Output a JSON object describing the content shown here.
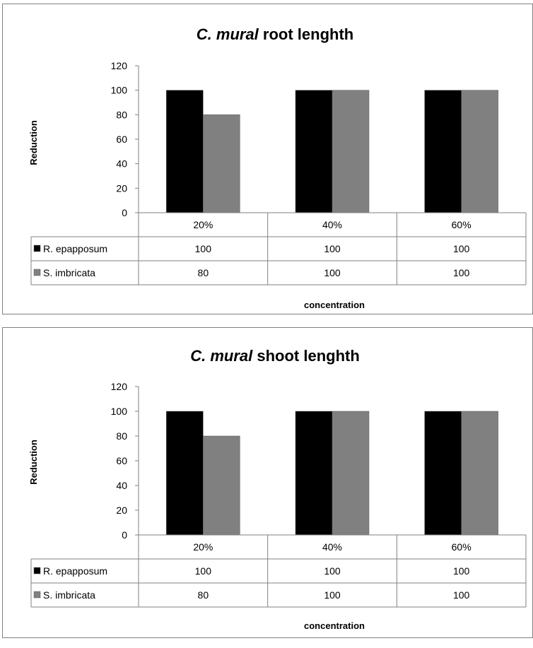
{
  "chart_data": [
    {
      "type": "bar",
      "title_italic": "C. mural",
      "title_rest": " root lenghth",
      "ylabel": "Reduction",
      "xlabel": "concentration",
      "categories": [
        "20%",
        "40%",
        "60%"
      ],
      "ylim": [
        0,
        120
      ],
      "yticks": [
        0,
        20,
        40,
        60,
        80,
        100,
        120
      ],
      "legend": "data-table",
      "series": [
        {
          "name": "R. epapposum",
          "values": [
            100,
            100,
            100
          ],
          "color": "#000000"
        },
        {
          "name": "S. imbricata",
          "values": [
            80,
            100,
            100
          ],
          "color": "#808080"
        }
      ]
    },
    {
      "type": "bar",
      "title_italic": "C. mural",
      "title_rest": " shoot lenghth",
      "ylabel": "Reduction",
      "xlabel": "concentration",
      "categories": [
        "20%",
        "40%",
        "60%"
      ],
      "ylim": [
        0,
        120
      ],
      "yticks": [
        0,
        20,
        40,
        60,
        80,
        100,
        120
      ],
      "legend": "data-table",
      "series": [
        {
          "name": "R. epapposum",
          "values": [
            100,
            100,
            100
          ],
          "color": "#000000"
        },
        {
          "name": "S. imbricata",
          "values": [
            80,
            100,
            100
          ],
          "color": "#808080"
        }
      ]
    }
  ]
}
